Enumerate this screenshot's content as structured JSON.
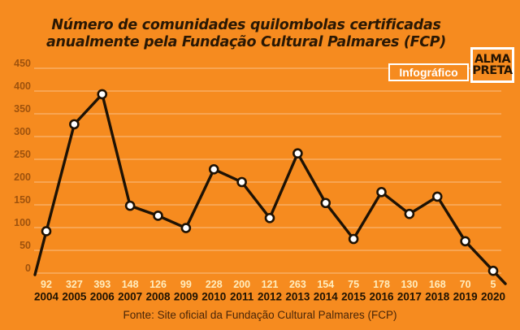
{
  "badges": {
    "infografico_label": "Infográfico",
    "logo_lines": [
      "ALMA",
      "PRETA"
    ]
  },
  "chart_data": {
    "type": "line",
    "title": "Número de comunidades quilombolas certificadas anualmente pela Fundação Cultural Palmares (FCP)",
    "title_lines": [
      "Número de comunidades quilombolas certificadas",
      "anualmente pela Fundação Cultural Palmares (FCP)"
    ],
    "categories": [
      "2004",
      "2005",
      "2006",
      "2007",
      "2008",
      "2009",
      "2010",
      "2011",
      "2012",
      "2013",
      "2014",
      "2015",
      "2016",
      "2017",
      "2018",
      "2019",
      "2020"
    ],
    "values": [
      92,
      327,
      393,
      148,
      126,
      99,
      228,
      200,
      121,
      263,
      154,
      75,
      178,
      130,
      168,
      70,
      5
    ],
    "y_ticks": [
      450,
      400,
      350,
      300,
      250,
      200,
      150,
      100,
      50,
      0
    ],
    "ylim": [
      0,
      450
    ],
    "grid": true,
    "point_labels_shown": true,
    "legend": false,
    "source": "Fonte: Site oficial da Fundação Cultural Palmares (FCP)"
  },
  "colors": {
    "background": "#F68B1F",
    "line": "#1E1204",
    "marker_fill": "#FFFFFF",
    "marker_stroke": "#1E1204",
    "title_text": "#2A1804",
    "value_label": "#FFEDBE",
    "year_label": "#201302",
    "axis_label": "#9E520D",
    "gridline": "rgba(255,255,255,0.45)",
    "badge_border": "#FFFFFF",
    "badge_text": "#FFFFFF",
    "footer_text": "#4A2608"
  }
}
